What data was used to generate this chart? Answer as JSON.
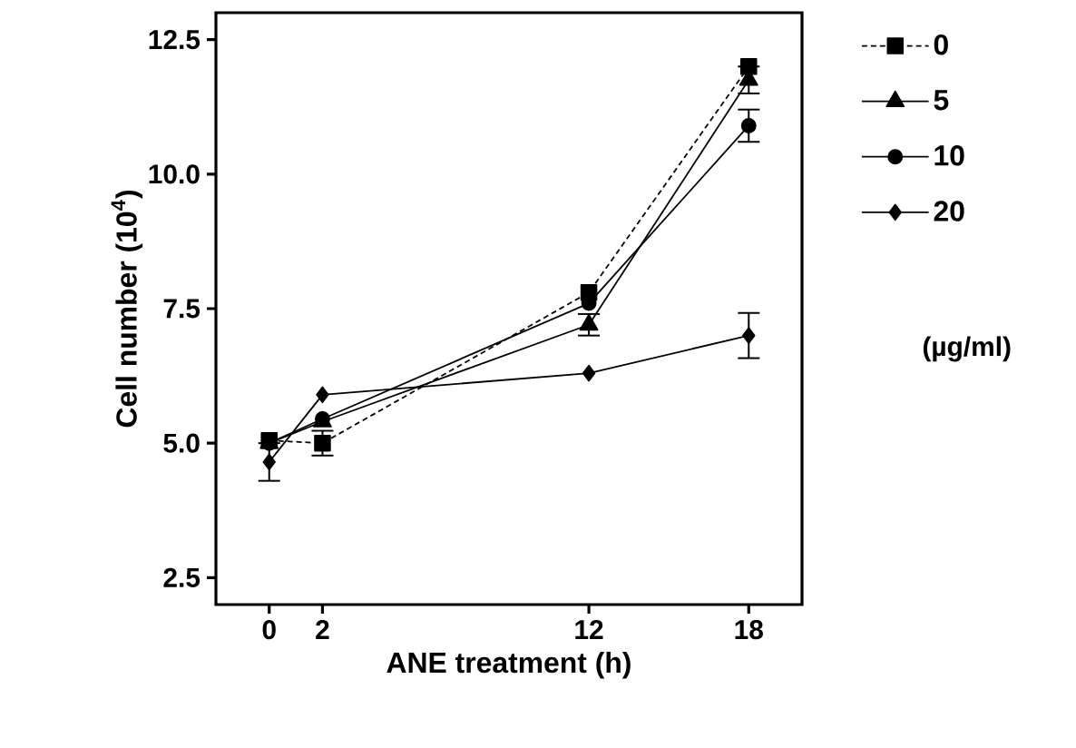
{
  "chart_data": {
    "type": "line",
    "xlabel": "ANE treatment (h)",
    "ylabel": "Cell number (10$^{4}$)",
    "legend_title": "(µg/ml)",
    "x": [
      0,
      2,
      12,
      18
    ],
    "xlim": [
      -2,
      20
    ],
    "xticks": [
      0,
      2,
      12,
      18
    ],
    "ylim": [
      2,
      13
    ],
    "yticks": [
      2.5,
      {
        "value": 5,
        "label": "5.0"
      },
      7.5,
      {
        "value": 10,
        "label": "10.0"
      },
      12.5
    ],
    "grid": false,
    "legend": "right",
    "series": [
      {
        "name": "0",
        "color": "#000000",
        "marker": "square",
        "line_style": "dashed",
        "values": [
          5.05,
          5.0,
          7.8,
          12.0
        ],
        "errors": [
          null,
          0.23,
          null,
          null
        ]
      },
      {
        "name": "5",
        "color": "#000000",
        "marker": "triangle",
        "line_style": "solid",
        "values": [
          5.0,
          5.4,
          7.2,
          11.75
        ],
        "errors": [
          null,
          null,
          0.2,
          0.25
        ]
      },
      {
        "name": "10",
        "color": "#000000",
        "marker": "circle",
        "line_style": "solid",
        "values": [
          5.0,
          5.45,
          7.6,
          10.9
        ],
        "errors": [
          null,
          null,
          null,
          0.3
        ]
      },
      {
        "name": "20",
        "color": "#000000",
        "marker": "diamond",
        "line_style": "solid",
        "values": [
          4.65,
          5.9,
          6.3,
          7.0
        ],
        "errors": [
          0.35,
          null,
          null,
          0.42
        ]
      }
    ]
  }
}
